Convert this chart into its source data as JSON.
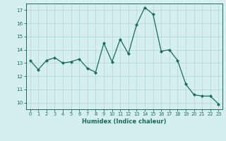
{
  "x": [
    0,
    1,
    2,
    3,
    4,
    5,
    6,
    7,
    8,
    9,
    10,
    11,
    12,
    13,
    14,
    15,
    16,
    17,
    18,
    19,
    20,
    21,
    22,
    23
  ],
  "y": [
    13.2,
    12.5,
    13.2,
    13.4,
    13.0,
    13.1,
    13.3,
    12.6,
    12.3,
    14.5,
    13.1,
    14.8,
    13.7,
    15.9,
    17.2,
    16.7,
    13.9,
    14.0,
    13.2,
    11.4,
    10.6,
    10.5,
    10.5,
    9.9
  ],
  "xlabel": "Humidex (Indice chaleur)",
  "ylabel": "",
  "xlim": [
    -0.5,
    23.5
  ],
  "ylim": [
    9.5,
    17.5
  ],
  "yticks": [
    10,
    11,
    12,
    13,
    14,
    15,
    16,
    17
  ],
  "xticks": [
    0,
    1,
    2,
    3,
    4,
    5,
    6,
    7,
    8,
    9,
    10,
    11,
    12,
    13,
    14,
    15,
    16,
    17,
    18,
    19,
    20,
    21,
    22,
    23
  ],
  "line_color": "#1a6b5a",
  "marker_color": "#1a6b5a",
  "bg_color": "#d4efed",
  "grid_color": "#b0d8d4",
  "tick_label_color": "#1a6b5a",
  "xlabel_color": "#1a6b5a",
  "axis_color": "#1a6b5a"
}
